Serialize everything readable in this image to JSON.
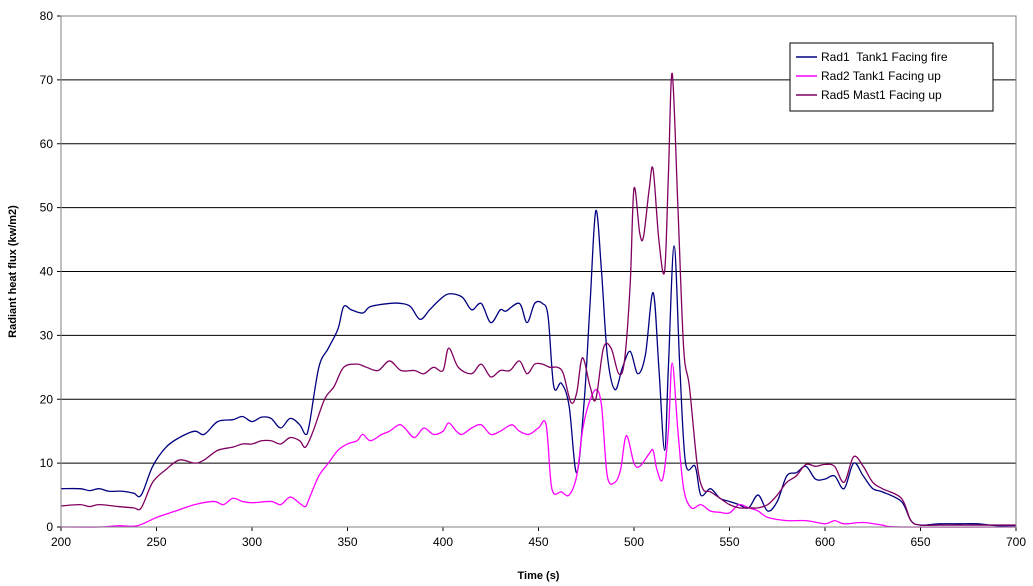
{
  "chart_data": {
    "type": "line",
    "xlabel": "Time (s)",
    "ylabel": "Radiant heat flux (kw/m2)",
    "xlim": [
      200,
      700
    ],
    "ylim": [
      0,
      80
    ],
    "x_ticks": [
      200,
      250,
      300,
      350,
      400,
      450,
      500,
      550,
      600,
      650,
      700
    ],
    "y_ticks": [
      0,
      10,
      20,
      30,
      40,
      50,
      60,
      70,
      80
    ],
    "grid": "horizontal",
    "legend_position": "top-right",
    "series": [
      {
        "name": "Rad1  Tank1 Facing fire",
        "color": "#000080",
        "points": [
          [
            200,
            6
          ],
          [
            210,
            6
          ],
          [
            215,
            5.7
          ],
          [
            220,
            6
          ],
          [
            225,
            5.6
          ],
          [
            232,
            5.6
          ],
          [
            238,
            5.3
          ],
          [
            242,
            5
          ],
          [
            248,
            9.5
          ],
          [
            255,
            12.5
          ],
          [
            262,
            14
          ],
          [
            270,
            15
          ],
          [
            275,
            14.5
          ],
          [
            282,
            16.5
          ],
          [
            290,
            16.8
          ],
          [
            295,
            17.3
          ],
          [
            300,
            16.5
          ],
          [
            305,
            17.2
          ],
          [
            310,
            17
          ],
          [
            315,
            15.5
          ],
          [
            320,
            17
          ],
          [
            325,
            16
          ],
          [
            328,
            14.5
          ],
          [
            330,
            16
          ],
          [
            335,
            25
          ],
          [
            340,
            28
          ],
          [
            345,
            31
          ],
          [
            348,
            34.5
          ],
          [
            352,
            34
          ],
          [
            358,
            33.5
          ],
          [
            362,
            34.5
          ],
          [
            372,
            35
          ],
          [
            378,
            35
          ],
          [
            383,
            34.5
          ],
          [
            388,
            32.5
          ],
          [
            393,
            34
          ],
          [
            398,
            35.5
          ],
          [
            403,
            36.5
          ],
          [
            410,
            36
          ],
          [
            415,
            34
          ],
          [
            420,
            35
          ],
          [
            425,
            32
          ],
          [
            430,
            34
          ],
          [
            433,
            33.8
          ],
          [
            440,
            35
          ],
          [
            444,
            32
          ],
          [
            448,
            35
          ],
          [
            452,
            35
          ],
          [
            455,
            33
          ],
          [
            458,
            22
          ],
          [
            462,
            22.5
          ],
          [
            466,
            19
          ],
          [
            470,
            8.5
          ],
          [
            474,
            20
          ],
          [
            477,
            35
          ],
          [
            480,
            49.5
          ],
          [
            483,
            40
          ],
          [
            486,
            27
          ],
          [
            490,
            21.5
          ],
          [
            494,
            25
          ],
          [
            498,
            27.5
          ],
          [
            502,
            24
          ],
          [
            506,
            27
          ],
          [
            510,
            36.7
          ],
          [
            513,
            25
          ],
          [
            516,
            12
          ],
          [
            518,
            25
          ],
          [
            521,
            44
          ],
          [
            524,
            25
          ],
          [
            527,
            10
          ],
          [
            532,
            9.5
          ],
          [
            535,
            5
          ],
          [
            540,
            6
          ],
          [
            545,
            4.5
          ],
          [
            550,
            4
          ],
          [
            555,
            3.5
          ],
          [
            560,
            3
          ],
          [
            565,
            5
          ],
          [
            570,
            2.5
          ],
          [
            575,
            4
          ],
          [
            580,
            8
          ],
          [
            585,
            8.5
          ],
          [
            590,
            9.5
          ],
          [
            595,
            7.5
          ],
          [
            600,
            7.5
          ],
          [
            605,
            8
          ],
          [
            610,
            6
          ],
          [
            615,
            10
          ],
          [
            620,
            8
          ],
          [
            625,
            6
          ],
          [
            630,
            5.5
          ],
          [
            640,
            4
          ],
          [
            645,
            1
          ],
          [
            650,
            0.3
          ],
          [
            660,
            0.5
          ],
          [
            670,
            0.5
          ],
          [
            680,
            0.5
          ],
          [
            690,
            0.2
          ],
          [
            700,
            0.2
          ]
        ]
      },
      {
        "name": "Rad2 Tank1 Facing up",
        "color": "#FF00FF",
        "points": [
          [
            200,
            0
          ],
          [
            220,
            0
          ],
          [
            230,
            0.2
          ],
          [
            240,
            0.2
          ],
          [
            250,
            1.5
          ],
          [
            260,
            2.5
          ],
          [
            270,
            3.5
          ],
          [
            280,
            4
          ],
          [
            285,
            3.5
          ],
          [
            290,
            4.5
          ],
          [
            295,
            4
          ],
          [
            300,
            3.8
          ],
          [
            310,
            4
          ],
          [
            315,
            3.5
          ],
          [
            320,
            4.7
          ],
          [
            325,
            3.7
          ],
          [
            328,
            3.2
          ],
          [
            330,
            4.5
          ],
          [
            335,
            8
          ],
          [
            340,
            10
          ],
          [
            345,
            12
          ],
          [
            350,
            13
          ],
          [
            355,
            13.5
          ],
          [
            358,
            14.5
          ],
          [
            362,
            13.5
          ],
          [
            368,
            14.5
          ],
          [
            372,
            15
          ],
          [
            377,
            16
          ],
          [
            380,
            15.5
          ],
          [
            385,
            14
          ],
          [
            390,
            15.5
          ],
          [
            395,
            14.5
          ],
          [
            400,
            15
          ],
          [
            403,
            16.3
          ],
          [
            407,
            15
          ],
          [
            410,
            14.5
          ],
          [
            415,
            15.5
          ],
          [
            420,
            16
          ],
          [
            425,
            14.5
          ],
          [
            430,
            15
          ],
          [
            436,
            16
          ],
          [
            440,
            15
          ],
          [
            445,
            14.5
          ],
          [
            450,
            15.5
          ],
          [
            454,
            16
          ],
          [
            457,
            6
          ],
          [
            462,
            5.5
          ],
          [
            466,
            5
          ],
          [
            470,
            8
          ],
          [
            473,
            15
          ],
          [
            476,
            19
          ],
          [
            480,
            21.5
          ],
          [
            483,
            19
          ],
          [
            486,
            8
          ],
          [
            490,
            7
          ],
          [
            493,
            9
          ],
          [
            496,
            14.3
          ],
          [
            500,
            10
          ],
          [
            503,
            9.5
          ],
          [
            508,
            11.5
          ],
          [
            510,
            12
          ],
          [
            512,
            9
          ],
          [
            515,
            7.5
          ],
          [
            518,
            15
          ],
          [
            520,
            25.7
          ],
          [
            523,
            15
          ],
          [
            526,
            6
          ],
          [
            530,
            3
          ],
          [
            535,
            3.5
          ],
          [
            540,
            2.5
          ],
          [
            545,
            2.3
          ],
          [
            550,
            2.2
          ],
          [
            555,
            3.5
          ],
          [
            560,
            3
          ],
          [
            565,
            2.5
          ],
          [
            570,
            1.5
          ],
          [
            580,
            1
          ],
          [
            590,
            1
          ],
          [
            600,
            0.5
          ],
          [
            605,
            1
          ],
          [
            610,
            0.5
          ],
          [
            620,
            0.7
          ],
          [
            630,
            0.3
          ],
          [
            640,
            0
          ],
          [
            700,
            0
          ]
        ]
      },
      {
        "name": "Rad5 Mast1 Facing up",
        "color": "#800060",
        "points": [
          [
            200,
            3.3
          ],
          [
            210,
            3.5
          ],
          [
            215,
            3.2
          ],
          [
            220,
            3.5
          ],
          [
            230,
            3.2
          ],
          [
            238,
            3
          ],
          [
            242,
            3
          ],
          [
            248,
            7
          ],
          [
            255,
            9
          ],
          [
            262,
            10.5
          ],
          [
            270,
            10
          ],
          [
            275,
            10.5
          ],
          [
            282,
            12
          ],
          [
            290,
            12.5
          ],
          [
            295,
            13
          ],
          [
            300,
            13
          ],
          [
            305,
            13.5
          ],
          [
            310,
            13.5
          ],
          [
            315,
            13
          ],
          [
            320,
            14
          ],
          [
            325,
            13.5
          ],
          [
            328,
            12.5
          ],
          [
            332,
            15
          ],
          [
            338,
            20
          ],
          [
            343,
            22
          ],
          [
            348,
            25
          ],
          [
            355,
            25.5
          ],
          [
            360,
            25
          ],
          [
            366,
            24.5
          ],
          [
            372,
            26
          ],
          [
            378,
            24.5
          ],
          [
            385,
            24.5
          ],
          [
            390,
            24
          ],
          [
            395,
            25
          ],
          [
            400,
            24.5
          ],
          [
            403,
            28
          ],
          [
            408,
            25
          ],
          [
            415,
            24
          ],
          [
            420,
            25.5
          ],
          [
            425,
            23.5
          ],
          [
            430,
            24.5
          ],
          [
            435,
            24.5
          ],
          [
            440,
            26
          ],
          [
            444,
            24
          ],
          [
            448,
            25.5
          ],
          [
            452,
            25.5
          ],
          [
            456,
            25
          ],
          [
            460,
            25
          ],
          [
            463,
            24
          ],
          [
            467,
            19.5
          ],
          [
            470,
            21
          ],
          [
            473,
            26.5
          ],
          [
            477,
            22
          ],
          [
            480,
            20
          ],
          [
            484,
            28
          ],
          [
            488,
            28
          ],
          [
            492,
            24
          ],
          [
            495,
            26
          ],
          [
            498,
            38
          ],
          [
            500,
            53
          ],
          [
            503,
            46
          ],
          [
            505,
            45.5
          ],
          [
            508,
            53
          ],
          [
            510,
            56
          ],
          [
            513,
            45
          ],
          [
            516,
            40
          ],
          [
            518,
            55
          ],
          [
            520,
            71
          ],
          [
            523,
            50
          ],
          [
            526,
            28
          ],
          [
            529,
            22
          ],
          [
            533,
            10
          ],
          [
            536,
            6
          ],
          [
            540,
            5.5
          ],
          [
            545,
            4.5
          ],
          [
            550,
            3.5
          ],
          [
            555,
            3
          ],
          [
            560,
            3
          ],
          [
            565,
            3
          ],
          [
            570,
            3.5
          ],
          [
            575,
            5
          ],
          [
            580,
            7
          ],
          [
            585,
            8
          ],
          [
            590,
            9.8
          ],
          [
            595,
            9.5
          ],
          [
            600,
            9.8
          ],
          [
            605,
            9.5
          ],
          [
            610,
            7
          ],
          [
            615,
            11
          ],
          [
            620,
            9.5
          ],
          [
            625,
            7
          ],
          [
            630,
            6
          ],
          [
            640,
            4.5
          ],
          [
            645,
            1
          ],
          [
            650,
            0.3
          ],
          [
            660,
            0.3
          ],
          [
            670,
            0.3
          ],
          [
            690,
            0.3
          ],
          [
            700,
            0.3
          ]
        ]
      }
    ]
  }
}
